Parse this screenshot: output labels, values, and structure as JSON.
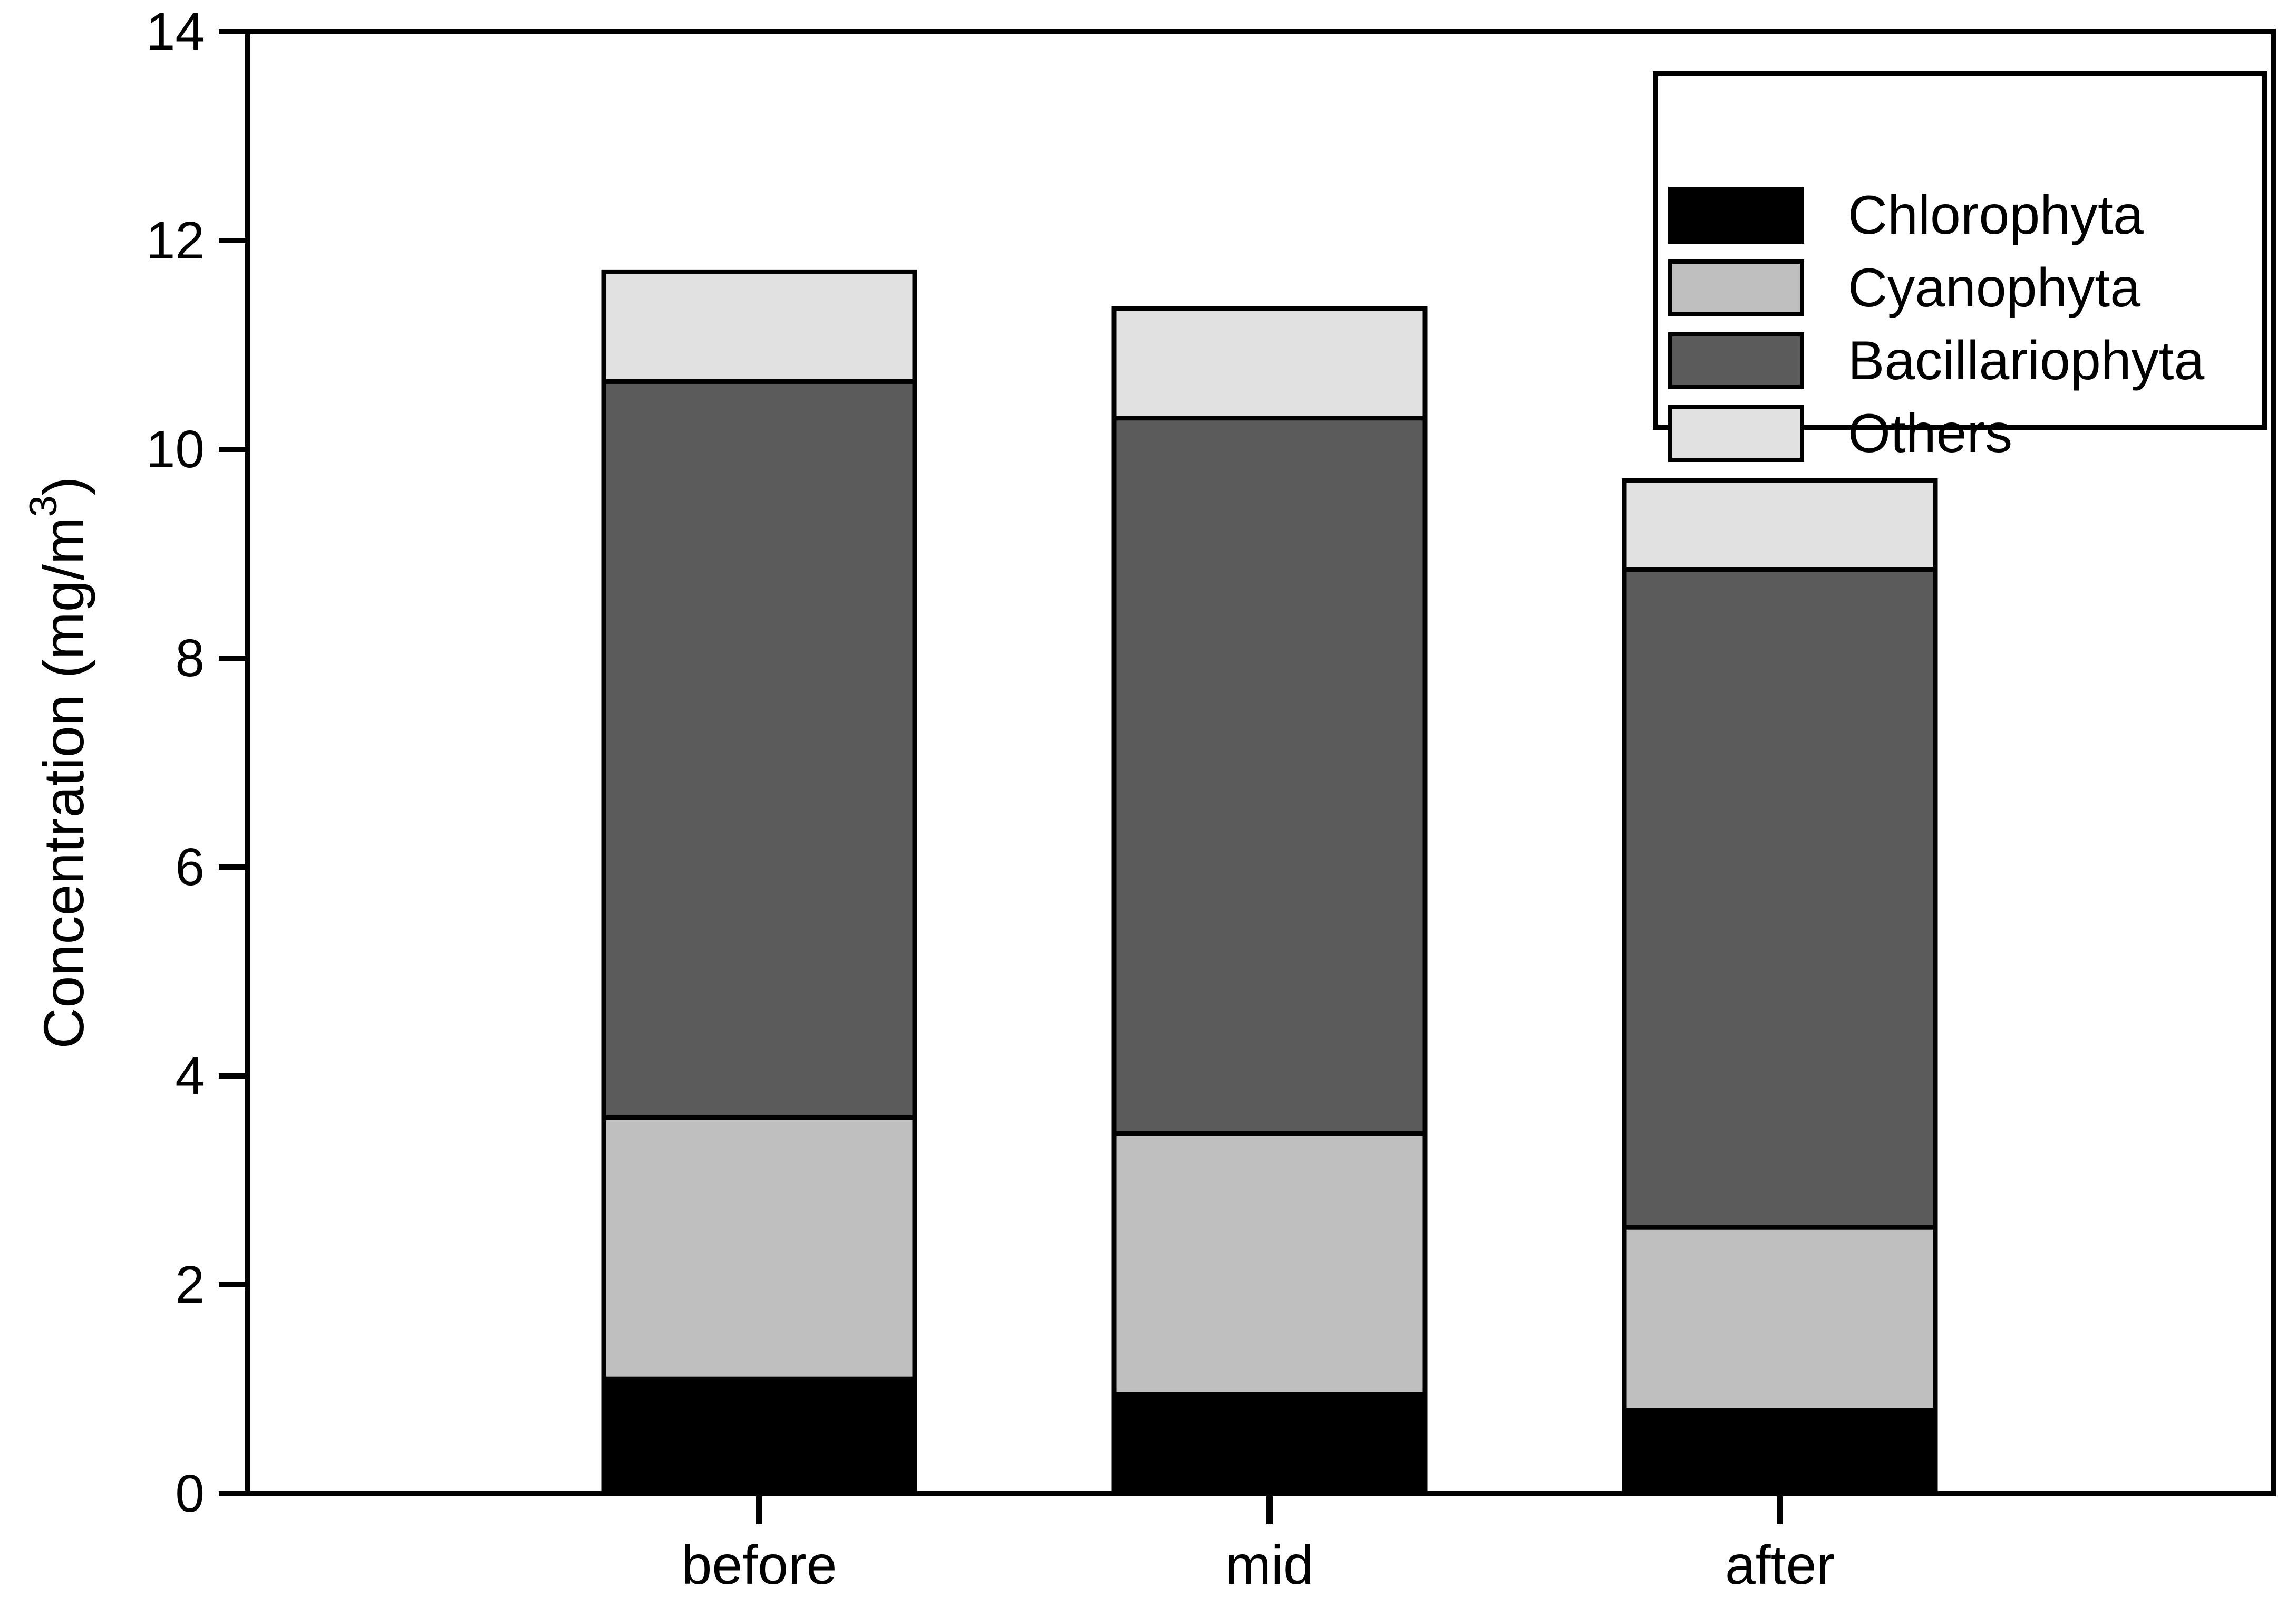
{
  "chart_data": {
    "type": "bar",
    "stacked": true,
    "title": "",
    "categories": [
      "before",
      "mid",
      "after"
    ],
    "series": [
      {
        "name": "Chlorophyta",
        "color": "#000000",
        "values": [
          1.1,
          0.95,
          0.8
        ]
      },
      {
        "name": "Cyanophyta",
        "color": "#bfbfbf",
        "values": [
          2.5,
          2.5,
          1.75
        ]
      },
      {
        "name": "Bacillariophyta",
        "color": "#5b5b5b",
        "values": [
          7.05,
          6.85,
          6.3
        ]
      },
      {
        "name": "Others",
        "color": "#e1e1e1",
        "values": [
          1.05,
          1.05,
          0.85
        ]
      }
    ],
    "totals": [
      11.7,
      11.35,
      9.7
    ],
    "xlabel": "",
    "ylabel": "Concentration (mg/m³)",
    "ylim": [
      0,
      14
    ],
    "ytick_step": 2,
    "ytick_labels": [
      "0",
      "2",
      "4",
      "6",
      "8",
      "10",
      "12",
      "14"
    ],
    "grid": false,
    "legend": {
      "position": "top-right",
      "entries": [
        "Chlorophyta",
        "Cyanophyta",
        "Bacillariophyta",
        "Others"
      ]
    },
    "frame_color": "#000000",
    "background_color": "#ffffff"
  }
}
